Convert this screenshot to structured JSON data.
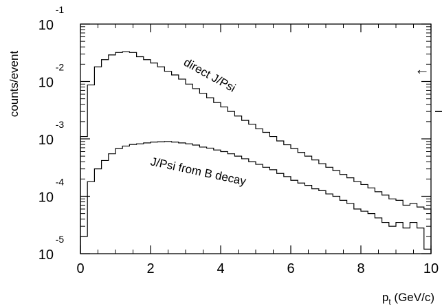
{
  "chart_data": {
    "type": "line",
    "title": "",
    "xlabel": "p",
    "xlabel_subscript": "t",
    "xlabel_unit": " (GeV/c)",
    "ylabel": "counts/event",
    "xlim": [
      0,
      10
    ],
    "ylim": [
      1e-05,
      0.1
    ],
    "yscale": "log",
    "grid": false,
    "x_ticks": [
      {
        "value": 0,
        "label": "0"
      },
      {
        "value": 2,
        "label": "2"
      },
      {
        "value": 4,
        "label": "4"
      },
      {
        "value": 6,
        "label": "6"
      },
      {
        "value": 8,
        "label": "8"
      },
      {
        "value": 10,
        "label": "10"
      }
    ],
    "y_ticks": [
      {
        "value": 0.1,
        "mantissa": "10",
        "exponent": "-1"
      },
      {
        "value": 0.01,
        "mantissa": "10",
        "exponent": "-2"
      },
      {
        "value": 0.001,
        "mantissa": "10",
        "exponent": "-3"
      },
      {
        "value": 0.0001,
        "mantissa": "10",
        "exponent": "-4"
      },
      {
        "value": 1e-05,
        "mantissa": "10",
        "exponent": "-5"
      }
    ],
    "bin_width": 0.2,
    "series": [
      {
        "name": "direct J/Psi",
        "x": [
          0.1,
          0.3,
          0.5,
          0.7,
          0.9,
          1.1,
          1.3,
          1.5,
          1.7,
          1.9,
          2.1,
          2.3,
          2.5,
          2.7,
          2.9,
          3.1,
          3.3,
          3.5,
          3.7,
          3.9,
          4.1,
          4.3,
          4.5,
          4.7,
          4.9,
          5.1,
          5.3,
          5.5,
          5.7,
          5.9,
          6.1,
          6.3,
          6.5,
          6.7,
          6.9,
          7.1,
          7.3,
          7.5,
          7.7,
          7.9,
          8.1,
          8.3,
          8.5,
          8.7,
          8.9,
          9.1,
          9.3,
          9.5,
          9.7,
          9.9
        ],
        "values": [
          0.0011,
          0.0087,
          0.018,
          0.024,
          0.029,
          0.032,
          0.033,
          0.032,
          0.027,
          0.024,
          0.021,
          0.018,
          0.015,
          0.013,
          0.011,
          0.009,
          0.0075,
          0.0062,
          0.0052,
          0.0043,
          0.0036,
          0.003,
          0.0025,
          0.0021,
          0.0018,
          0.0015,
          0.0013,
          0.0011,
          0.00092,
          0.00079,
          0.00068,
          0.00058,
          0.0005,
          0.00043,
          0.00037,
          0.00032,
          0.00028,
          0.00024,
          0.00021,
          0.00018,
          0.00016,
          0.00014,
          0.00012,
          0.000105,
          9e-05,
          8.5e-05,
          7e-05,
          7.5e-05,
          6.5e-05,
          6e-05
        ]
      },
      {
        "name": "J/Psi from B decay",
        "x": [
          0.1,
          0.3,
          0.5,
          0.7,
          0.9,
          1.1,
          1.3,
          1.5,
          1.7,
          1.9,
          2.1,
          2.3,
          2.5,
          2.7,
          2.9,
          3.1,
          3.3,
          3.5,
          3.7,
          3.9,
          4.1,
          4.3,
          4.5,
          4.7,
          4.9,
          5.1,
          5.3,
          5.5,
          5.7,
          5.9,
          6.1,
          6.3,
          6.5,
          6.7,
          6.9,
          7.1,
          7.3,
          7.5,
          7.7,
          7.9,
          8.1,
          8.3,
          8.5,
          8.7,
          8.9,
          9.1,
          9.3,
          9.5,
          9.7,
          9.9
        ],
        "values": [
          2e-05,
          0.00018,
          0.0003,
          0.00042,
          0.00055,
          0.00068,
          0.00075,
          0.0008,
          0.00082,
          0.00085,
          0.00088,
          0.00089,
          0.0009,
          0.00088,
          0.00085,
          0.00082,
          0.00078,
          0.00072,
          0.00069,
          0.00064,
          0.0006,
          0.00055,
          0.0005,
          0.00045,
          0.0004,
          0.00036,
          0.00032,
          0.00029,
          0.00025,
          0.00022,
          0.00019,
          0.00017,
          0.000155,
          0.000135,
          0.000125,
          0.00011,
          0.0001,
          8.5e-05,
          7.5e-05,
          6e-05,
          5.5e-05,
          5e-05,
          4.2e-05,
          3.5e-05,
          3e-05,
          3.5e-05,
          2.8e-05,
          3.5e-05,
          2.8e-05,
          1.2e-05
        ]
      }
    ],
    "annotations": [
      {
        "text": "direct J/Psi",
        "series": "direct J/Psi"
      },
      {
        "text": "J/Psi from B decay",
        "series": "J/Psi from B decay"
      }
    ],
    "edge_marks": [
      {
        "symbol": "←",
        "color": "#0000cc"
      },
      {
        "symbol": "–",
        "color": "#cc0000"
      }
    ]
  }
}
